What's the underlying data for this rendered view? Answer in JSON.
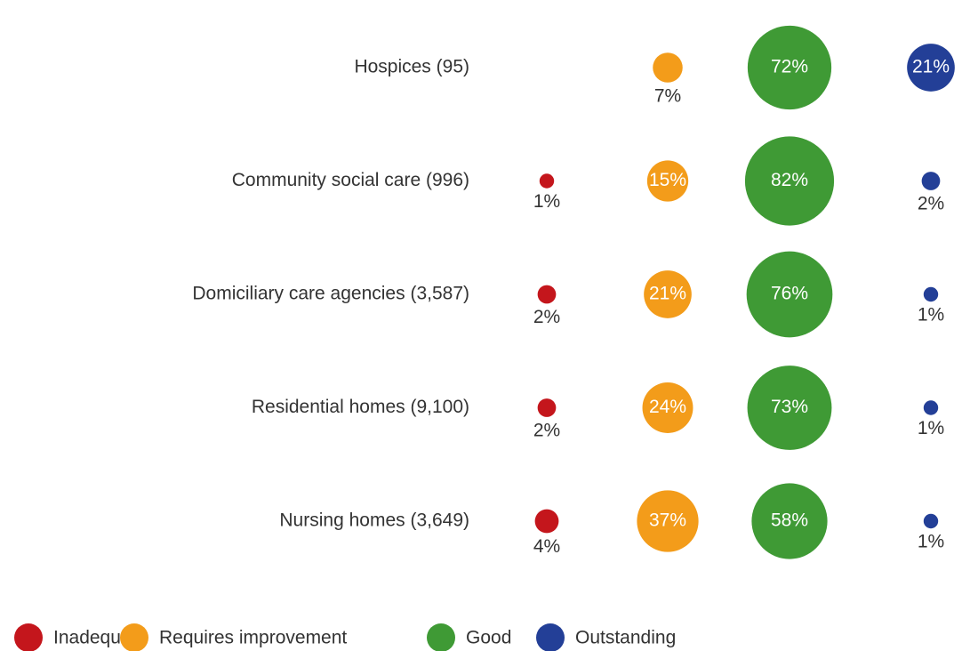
{
  "chart_data": {
    "type": "bubble",
    "categories": [
      "Hospices (95)",
      "Community social care (996)",
      "Domiciliary care agencies (3,587)",
      "Residential homes (9,100)",
      "Nursing homes (3,649)"
    ],
    "series": [
      {
        "name": "Inadequate",
        "color": "#c4161c",
        "values": [
          null,
          1,
          2,
          2,
          4
        ],
        "value_labels": [
          null,
          "1%",
          "2%",
          "2%",
          "4%"
        ]
      },
      {
        "name": "Requires improvement",
        "color": "#f39c1a",
        "values": [
          7,
          15,
          21,
          24,
          37
        ],
        "value_labels": [
          "7%",
          "15%",
          "21%",
          "24%",
          "37%"
        ]
      },
      {
        "name": "Good",
        "color": "#3f9a35",
        "values": [
          72,
          82,
          76,
          73,
          58
        ],
        "value_labels": [
          "72%",
          "82%",
          "76%",
          "73%",
          "58%"
        ]
      },
      {
        "name": "Outstanding",
        "color": "#233f97",
        "values": [
          21,
          2,
          1,
          1,
          1
        ],
        "value_labels": [
          "21%",
          "2%",
          "1%",
          "1%",
          "1%"
        ]
      }
    ]
  }
}
